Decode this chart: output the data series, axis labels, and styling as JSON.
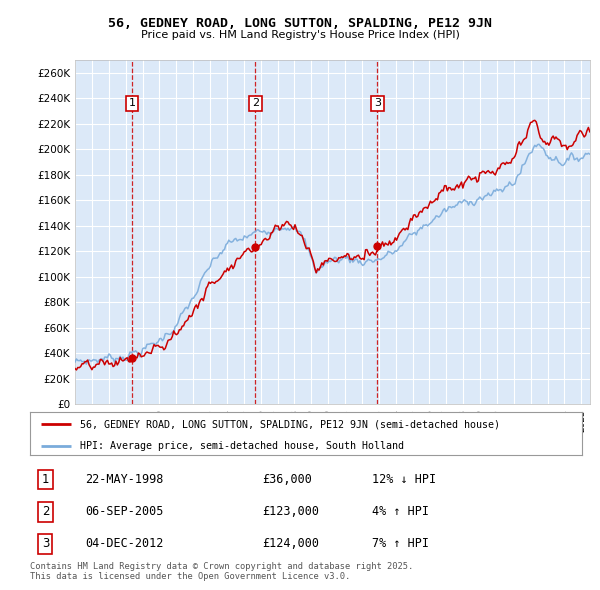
{
  "title": "56, GEDNEY ROAD, LONG SUTTON, SPALDING, PE12 9JN",
  "subtitle": "Price paid vs. HM Land Registry's House Price Index (HPI)",
  "legend_line1": "56, GEDNEY ROAD, LONG SUTTON, SPALDING, PE12 9JN (semi-detached house)",
  "legend_line2": "HPI: Average price, semi-detached house, South Holland",
  "footer": "Contains HM Land Registry data © Crown copyright and database right 2025.\nThis data is licensed under the Open Government Licence v3.0.",
  "transactions": [
    {
      "num": 1,
      "date": "22-MAY-1998",
      "price": 36000,
      "hpi_diff": "12% ↓ HPI",
      "year": 1998.38
    },
    {
      "num": 2,
      "date": "06-SEP-2005",
      "price": 123000,
      "hpi_diff": "4% ↑ HPI",
      "year": 2005.68
    },
    {
      "num": 3,
      "date": "04-DEC-2012",
      "price": 124000,
      "hpi_diff": "7% ↑ HPI",
      "year": 2012.92
    }
  ],
  "ylim": [
    0,
    270000
  ],
  "ytick_vals": [
    0,
    20000,
    40000,
    60000,
    80000,
    100000,
    120000,
    140000,
    160000,
    180000,
    200000,
    220000,
    240000,
    260000
  ],
  "ytick_labels": [
    "£0",
    "£20K",
    "£40K",
    "£60K",
    "£80K",
    "£100K",
    "£120K",
    "£140K",
    "£160K",
    "£180K",
    "£200K",
    "£220K",
    "£240K",
    "£260K"
  ],
  "plot_bg": "#dce9f8",
  "line_color_red": "#cc0000",
  "line_color_blue": "#7aabdb",
  "grid_color": "#ffffff",
  "transaction_line_color": "#cc0000",
  "box_color": "#cc0000",
  "xlim_start": 1995.0,
  "xlim_end": 2025.5
}
